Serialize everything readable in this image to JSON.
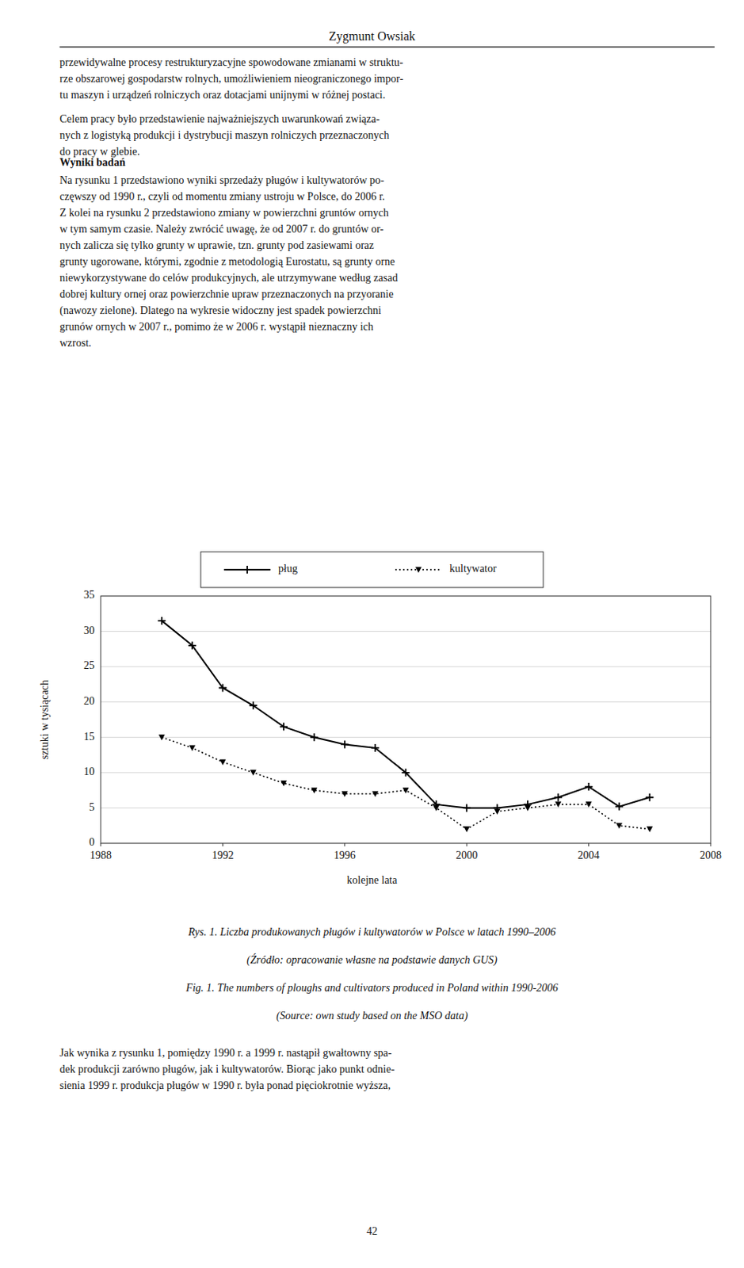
{
  "page": {
    "title": "Zygmunt Owsiak",
    "paragraphs": [
      "przewidywalne procesy restrukturyzacyjne spowodowane zmianami w struktu-\nrze obszarowej gospodarstw rolnych, umożliwieniem nieograniczonego impor-\ntu maszyn i urządzeń rolniczych oraz dotacjami unijnymi w różnej postaci.",
      "Celem pracy było przedstawienie najważniejszych uwarunkowań związa-\nnych z logistyką produkcji i dystrybucji maszyn rolniczych przeznaczonych\ndo pracy w glebie."
    ],
    "section_header": "Wyniki badań",
    "section_text": "Na rysunku 1 przedstawiono wyniki sprzedaży pługów i kultywatorów po-\nczęwszy od 1990 r., czyli od momentu zmiany ustroju w Polsce, do 2006 r.\nZ kolei na rysunku 2 przedstawiono zmiany w powierzchni gruntów ornych\nw tym samym czasie. Należy zwrócić uwagę, że od 2007 r. do gruntów or-\nnych zalicza się tylko grunty w uprawie, tzn. grunty pod zasiewami oraz\ngrunty ugorowane, którymi, zgodnie z metodologią Eurostatu, są grunty orne\nniewykorzystywane do celów produkcyjnych, ale utrzymywane według zasad\ndobrej kultury ornej oraz powierzchnie upraw przeznaczonych na przyoranie\n(nawozy zielone). Dlatego na wykresie widoczny jest spadek powierzchni\ngrunów ornych w 2007 r., pomimo że w 2006 r. wystąpił nieznaczny ich\nwzrost.",
    "footer": "Jak wynika z rysunku 1, pomiędzy 1990 r. a 1999 r. nastąpił gwałtowny spa-\ndek produkcji zarówno pługów, jak i kultywatorów. Biorąc jako punkt odnie-\nsienia 1999 r. produkcja pługów w 1990 r. była ponad pięciokrotnie wyższa,",
    "page_number": "42"
  },
  "chart_data": {
    "type": "line",
    "xlabel": "kolejne lata",
    "ylabel": "sztuki w tysiącach",
    "x": [
      1990,
      1991,
      1992,
      1993,
      1994,
      1995,
      1996,
      1997,
      1998,
      1999,
      2000,
      2001,
      2002,
      2003,
      2004,
      2005,
      2006
    ],
    "series": [
      {
        "name": "pług",
        "color": "#000000",
        "line_style": "solid",
        "marker": "plus",
        "values": [
          31.5,
          28.0,
          22.0,
          19.5,
          16.5,
          15.0,
          14.0,
          13.5,
          10.0,
          5.5,
          5.0,
          5.0,
          5.5,
          6.5,
          8.0,
          5.2,
          6.5
        ]
      },
      {
        "name": "kultywator",
        "color": "#000000",
        "line_style": "dotted",
        "marker": "triangle-down",
        "values": [
          15.0,
          13.5,
          11.5,
          10.0,
          8.5,
          7.5,
          7.0,
          7.0,
          7.5,
          5.0,
          2.0,
          4.5,
          5.0,
          5.5,
          5.5,
          2.5,
          2.0
        ]
      }
    ],
    "xlim": [
      1988,
      2008
    ],
    "xticks": [
      1988,
      1992,
      1996,
      2000,
      2004,
      2008
    ],
    "ylim": [
      0,
      35
    ],
    "yticks": [
      0,
      5,
      10,
      15,
      20,
      25,
      30,
      35
    ],
    "grid": true,
    "legend": "top",
    "annotations": [
      "Rys. 1. Liczba produkowanych pługów i kultywatorów w Polsce w latach 1990–2006",
      "(Źródło: opracowanie własne na podstawie danych GUS)",
      "Fig. 1. The numbers of ploughs and cultivators produced in Poland within 1990-2006",
      "(Source: own study based on the MSO data)"
    ]
  }
}
